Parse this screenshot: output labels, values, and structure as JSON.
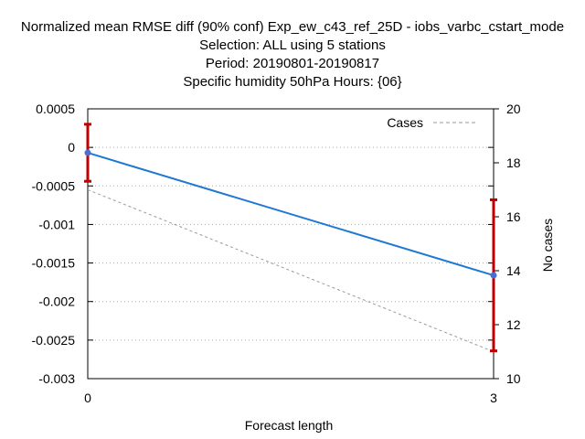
{
  "chart_data": {
    "type": "line",
    "title_lines": [
      "Normalized mean RMSE diff (90% conf) Exp_ew_c43_ref_25D - iobs_varbc_cstart_mode",
      "Selection: ALL using      5 stations",
      "Period: 20190801-20190817",
      "Specific humidity 50hPa   Hours: {06}"
    ],
    "xlabel": "Forecast length",
    "ylabel": "",
    "y2label": "No cases",
    "x": [
      0,
      3
    ],
    "xlim": [
      0,
      3
    ],
    "x_ticks": [
      "0",
      "3"
    ],
    "ylim": [
      -0.003,
      0.0005
    ],
    "y_ticks": [
      "0.0005",
      "0",
      "-0.0005",
      "-0.001",
      "-0.0015",
      "-0.002",
      "-0.0025",
      "-0.003"
    ],
    "y_tick_values": [
      0.0005,
      0,
      -0.0005,
      -0.001,
      -0.0015,
      -0.002,
      -0.0025,
      -0.003
    ],
    "y2lim": [
      10,
      20
    ],
    "y2_ticks": [
      "20",
      "18",
      "16",
      "14",
      "12",
      "10"
    ],
    "y2_tick_values": [
      20,
      18,
      16,
      14,
      12,
      10
    ],
    "grid": true,
    "legend_position": "top-right",
    "series": [
      {
        "values": [
          -7e-05,
          -0.00166
        ],
        "error_low": [
          -0.00044,
          -0.00264
        ],
        "error_high": [
          0.0003,
          -0.00068
        ],
        "color": "#1f78d4",
        "error_color": "#c00000",
        "axis": "left"
      },
      {
        "name": "Cases",
        "values": [
          17,
          11
        ],
        "color": "#999999",
        "dashed": true,
        "axis": "right"
      }
    ]
  }
}
